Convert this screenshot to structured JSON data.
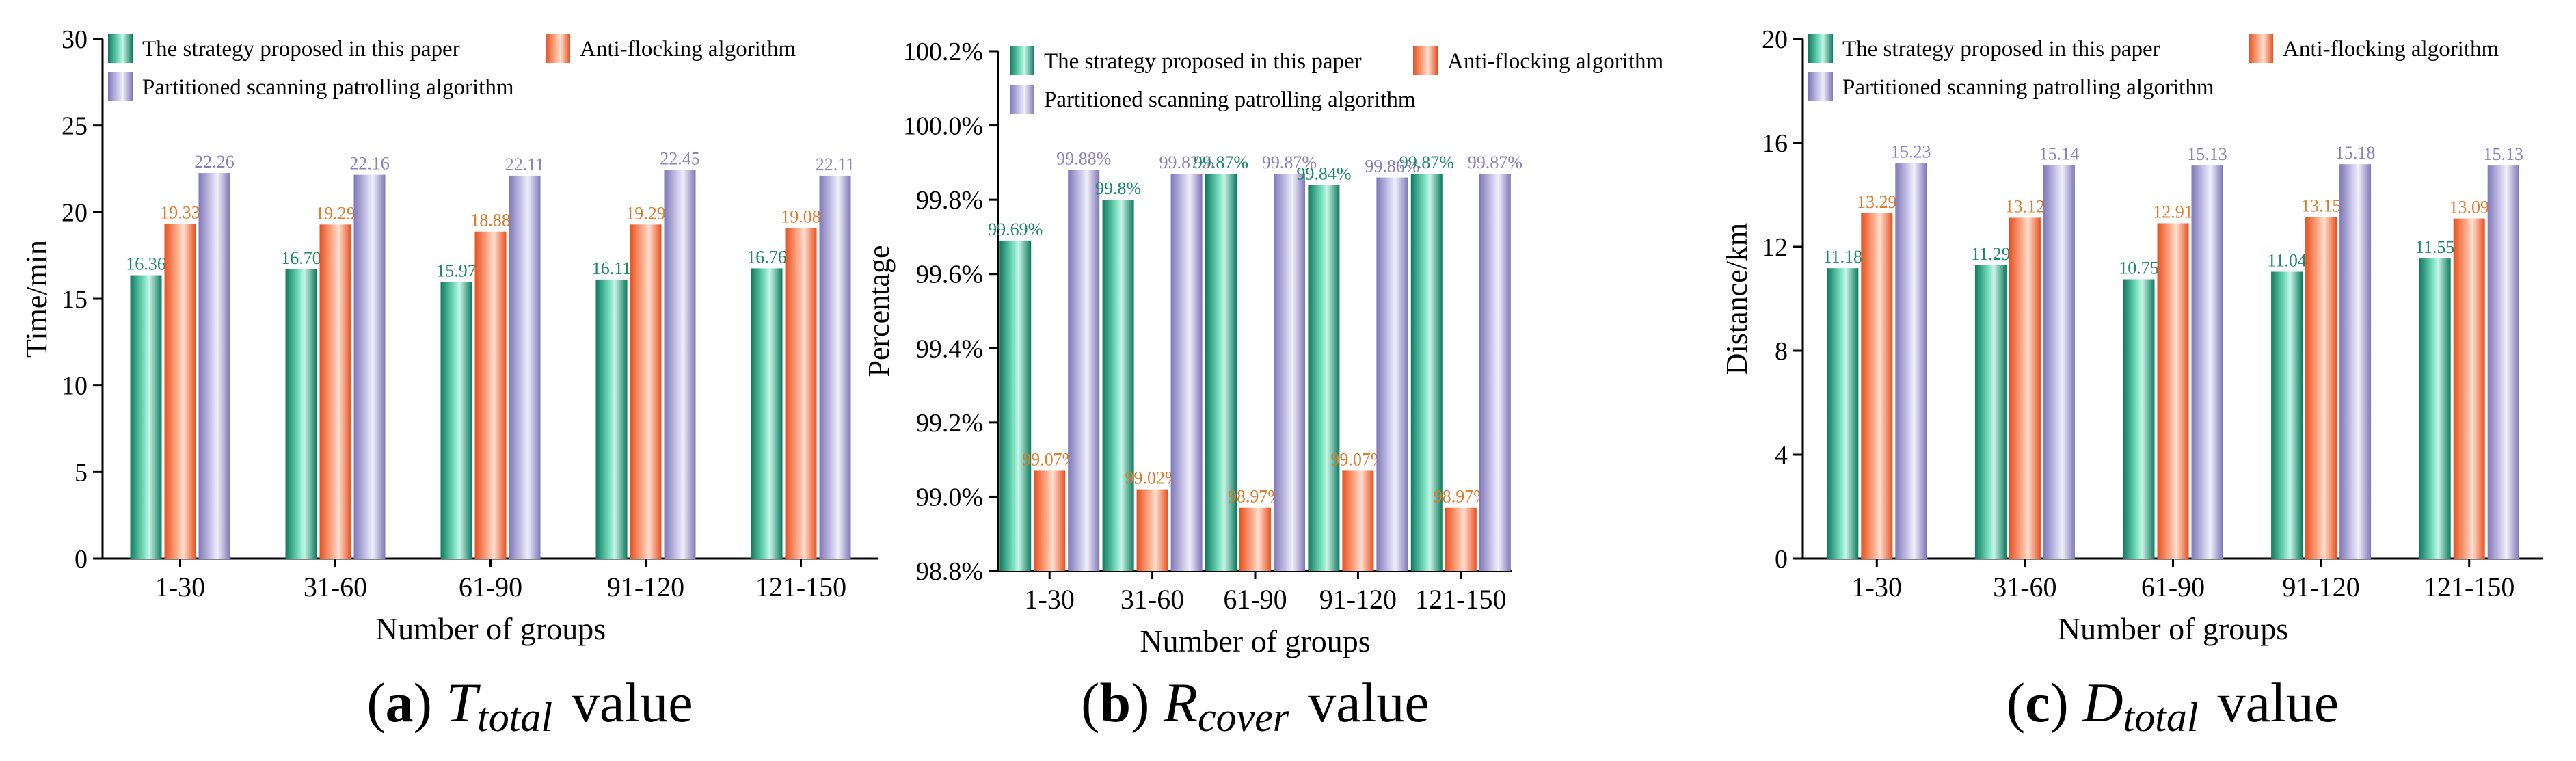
{
  "chart_data": [
    {
      "type": "bar",
      "title": "",
      "categories": [
        "1-30",
        "31-60",
        "61-90",
        "91-120",
        "121-150"
      ],
      "series": [
        {
          "name": "The strategy proposed in this paper",
          "values": [
            16.36,
            16.7,
            15.97,
            16.11,
            16.76
          ],
          "labels": [
            "16.36",
            "16.70",
            "15.97",
            "16.11",
            "16.76"
          ]
        },
        {
          "name": "Anti-flocking algorithm",
          "values": [
            19.33,
            19.29,
            18.88,
            19.29,
            19.08
          ],
          "labels": [
            "19.33",
            "19.29",
            "18.88",
            "19.29",
            "19.08"
          ]
        },
        {
          "name": "Partitioned scanning patrolling algorithm",
          "values": [
            22.26,
            22.16,
            22.11,
            22.45,
            22.11
          ],
          "labels": [
            "22.26",
            "22.16",
            "22.11",
            "22.45",
            "22.11"
          ]
        }
      ],
      "xlabel": "Number of groups",
      "ylabel": "Time/min",
      "ylim": [
        0,
        30
      ],
      "yticks": [
        "0",
        "5",
        "10",
        "15",
        "20",
        "25",
        "30"
      ],
      "caption": {
        "letter": "a",
        "symbol": "T",
        "subscript": "total",
        "suffix": "value"
      }
    },
    {
      "type": "bar",
      "title": "",
      "categories": [
        "1-30",
        "31-60",
        "61-90",
        "91-120",
        "121-150"
      ],
      "series": [
        {
          "name": "The strategy proposed in this paper",
          "values": [
            99.69,
            99.8,
            99.87,
            99.84,
            99.87
          ],
          "labels": [
            "99.69%",
            "99.8%",
            "99.87%",
            "99.84%",
            "99.87%"
          ]
        },
        {
          "name": "Anti-flocking algorithm",
          "values": [
            99.07,
            99.02,
            98.97,
            99.07,
            98.97
          ],
          "labels": [
            "99.07%",
            "99.02%",
            "98.97%",
            "99.07%",
            "98.97%"
          ]
        },
        {
          "name": "Partitioned scanning patrolling algorithm",
          "values": [
            99.88,
            99.87,
            99.87,
            99.86,
            99.87
          ],
          "labels": [
            "99.88%",
            "99.87%",
            "99.87%",
            "99.86%",
            "99.87%"
          ]
        }
      ],
      "xlabel": "Number of groups",
      "ylabel": "Percentage",
      "ylim": [
        98.8,
        100.2
      ],
      "yticks": [
        "98.8%",
        "99.0%",
        "99.2%",
        "99.4%",
        "99.6%",
        "99.8%",
        "100.0%",
        "100.2%"
      ],
      "caption": {
        "letter": "b",
        "symbol": "R",
        "subscript": "cover",
        "suffix": "value"
      }
    },
    {
      "type": "bar",
      "title": "",
      "categories": [
        "1-30",
        "31-60",
        "61-90",
        "91-120",
        "121-150"
      ],
      "series": [
        {
          "name": "The strategy proposed in this paper",
          "values": [
            11.18,
            11.29,
            10.75,
            11.04,
            11.55
          ],
          "labels": [
            "11.18",
            "11.29",
            "10.75",
            "11.04",
            "11.55"
          ]
        },
        {
          "name": "Anti-flocking algorithm",
          "values": [
            13.29,
            13.12,
            12.91,
            13.15,
            13.09
          ],
          "labels": [
            "13.29",
            "13.12",
            "12.91",
            "13.15",
            "13.09"
          ]
        },
        {
          "name": "Partitioned scanning patrolling algorithm",
          "values": [
            15.23,
            15.14,
            15.13,
            15.18,
            15.13
          ],
          "labels": [
            "15.23",
            "15.14",
            "15.13",
            "15.18",
            "15.13"
          ]
        }
      ],
      "xlabel": "Number of groups",
      "ylabel": "Distance/km",
      "ylim": [
        0,
        20
      ],
      "yticks": [
        "0",
        "4",
        "8",
        "12",
        "16",
        "20"
      ],
      "caption": {
        "letter": "c",
        "symbol": "D",
        "subscript": "total",
        "suffix": "value"
      }
    }
  ],
  "colors": {
    "series": [
      "#1e9c7c",
      "#f26b3a",
      "#9b93c9"
    ],
    "labels": [
      "#1a8a6a",
      "#e07b2a",
      "#8a80c0"
    ],
    "axis": "#000000"
  }
}
